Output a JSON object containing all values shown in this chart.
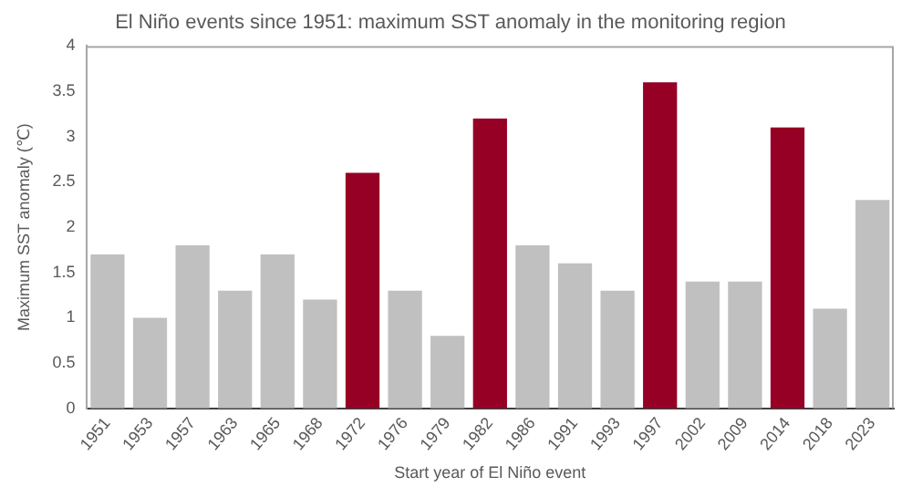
{
  "chart_data": {
    "type": "bar",
    "title": "El Niño events since 1951: maximum SST anomaly in the monitoring region",
    "xlabel": "Start year of El Niño event",
    "ylabel": "Maximum SST anomaly (℃)",
    "categories": [
      "1951",
      "1953",
      "1957",
      "1963",
      "1965",
      "1968",
      "1972",
      "1976",
      "1979",
      "1982",
      "1986",
      "1991",
      "1993",
      "1997",
      "2002",
      "2009",
      "2014",
      "2018",
      "2023"
    ],
    "values": [
      1.7,
      1.0,
      1.8,
      1.3,
      1.7,
      1.2,
      2.6,
      1.3,
      0.8,
      3.2,
      1.8,
      1.6,
      1.3,
      3.6,
      1.4,
      1.4,
      3.1,
      1.1,
      2.3
    ],
    "colors": [
      "#c0c0c0",
      "#c0c0c0",
      "#c0c0c0",
      "#c0c0c0",
      "#c0c0c0",
      "#c0c0c0",
      "#960024",
      "#c0c0c0",
      "#c0c0c0",
      "#960024",
      "#c0c0c0",
      "#c0c0c0",
      "#c0c0c0",
      "#960024",
      "#c0c0c0",
      "#c0c0c0",
      "#960024",
      "#c0c0c0",
      "#c0c0c0"
    ],
    "ylim": [
      0,
      4
    ],
    "yticks": [
      0,
      0.5,
      1,
      1.5,
      2,
      2.5,
      3,
      3.5,
      4
    ],
    "grid": false,
    "legend": false
  }
}
